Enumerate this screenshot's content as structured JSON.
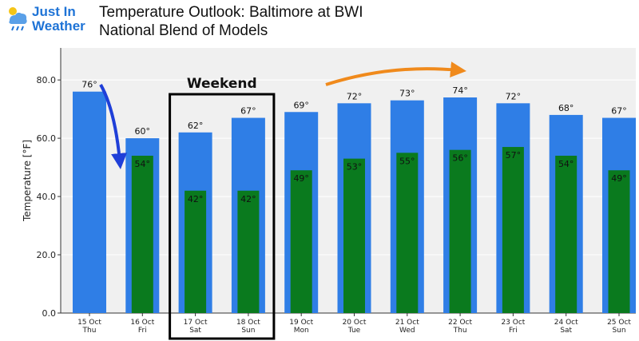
{
  "logo": {
    "line1": "Just In",
    "line2": "Weather"
  },
  "header": {
    "title": "Temperature Outlook: Baltimore at BWI",
    "subtitle": "National Blend of Models"
  },
  "chart_data": {
    "type": "bar",
    "ylabel": "Temperature [°F]",
    "ylim": [
      0,
      91
    ],
    "yticks": [
      "0.0",
      "20.0",
      "40.0",
      "60.0",
      "80.0"
    ],
    "categories": [
      {
        "date": "15 Oct",
        "day": "Thu"
      },
      {
        "date": "16 Oct",
        "day": "Fri"
      },
      {
        "date": "17 Oct",
        "day": "Sat"
      },
      {
        "date": "18 Oct",
        "day": "Sun"
      },
      {
        "date": "19 Oct",
        "day": "Mon"
      },
      {
        "date": "20 Oct",
        "day": "Tue"
      },
      {
        "date": "21 Oct",
        "day": "Wed"
      },
      {
        "date": "22 Oct",
        "day": "Thu"
      },
      {
        "date": "23 Oct",
        "day": "Fri"
      },
      {
        "date": "24 Oct",
        "day": "Sat"
      },
      {
        "date": "25 Oct",
        "day": "Sun"
      }
    ],
    "series": [
      {
        "values": [
          76,
          60,
          62,
          67,
          69,
          72,
          73,
          74,
          72,
          68,
          67
        ],
        "color": "#2f7ee6",
        "labels": [
          "76°",
          "60°",
          "62°",
          "67°",
          "69°",
          "72°",
          "73°",
          "74°",
          "72°",
          "68°",
          "67°"
        ]
      },
      {
        "values": [
          null,
          54,
          42,
          42,
          49,
          53,
          55,
          56,
          57,
          54,
          49
        ],
        "color": "#0a7a1e",
        "labels": [
          "",
          "54°",
          "42°",
          "42°",
          "49°",
          "53°",
          "55°",
          "56°",
          "57°",
          "54°",
          "49°"
        ]
      }
    ],
    "annotations": {
      "weekend_label": "Weekend",
      "weekend_range": [
        "17 Oct",
        "18 Oct"
      ],
      "down_arrow_color": "#1f3fd8",
      "up_arrow_color": "#f08a1c"
    },
    "grid": true,
    "plot_background": "#f0f0f0"
  }
}
